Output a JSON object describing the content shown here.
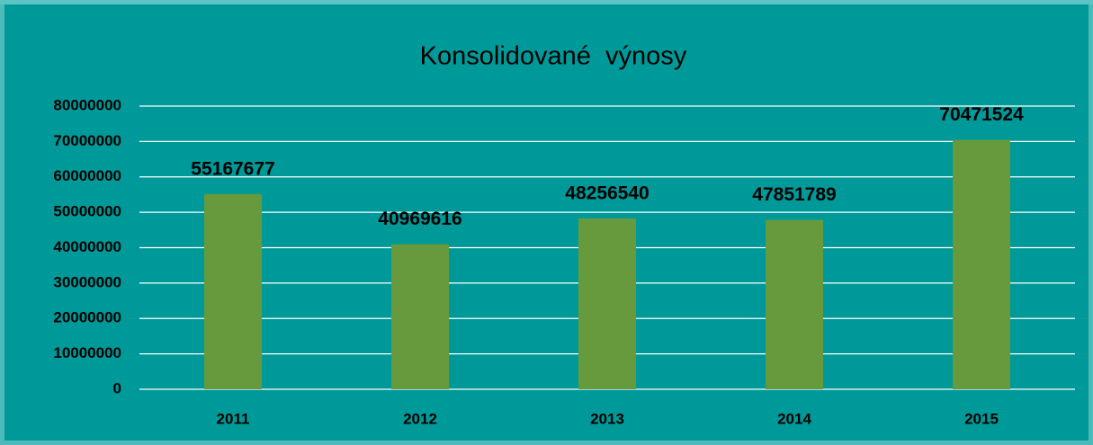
{
  "chart_data": {
    "type": "bar",
    "title": "Konsolidované  výnosy",
    "categories": [
      "2011",
      "2012",
      "2013",
      "2014",
      "2015"
    ],
    "values": [
      55167677,
      40969616,
      48256540,
      47851789,
      70471524
    ],
    "color": "#669a3c",
    "ylim": [
      0,
      80000000
    ],
    "yticks": [
      0,
      10000000,
      20000000,
      30000000,
      40000000,
      50000000,
      60000000,
      70000000,
      80000000
    ],
    "grid": true
  }
}
